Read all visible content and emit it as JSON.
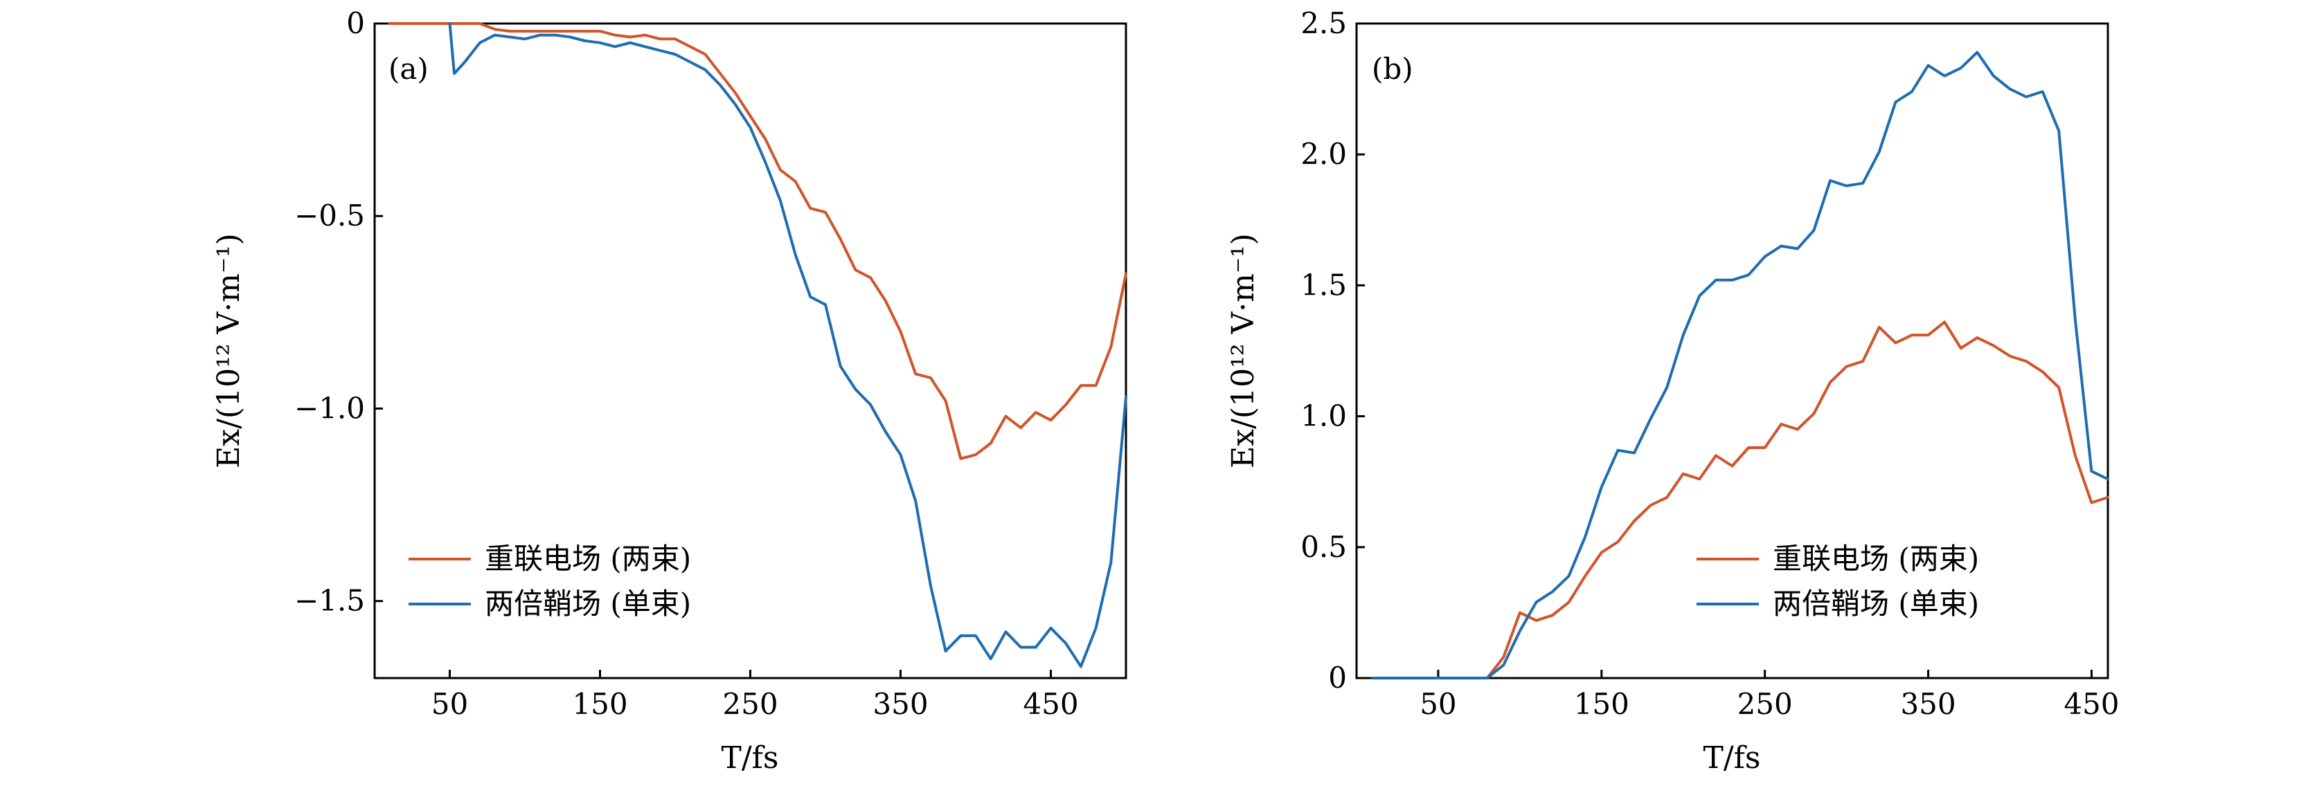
{
  "chart_data": [
    {
      "type": "line",
      "panel_label": "(a)",
      "xlabel": "T/fs",
      "ylabel": "Ex/(10¹² V·m⁻¹)",
      "xlim": [
        0,
        500
      ],
      "ylim": [
        -1.7,
        0
      ],
      "xticks": [
        50,
        150,
        250,
        350,
        450
      ],
      "xtick_labels": [
        "50",
        "150",
        "250",
        "350",
        "450"
      ],
      "yticks": [
        0,
        -0.5,
        -1.0,
        -1.5
      ],
      "ytick_labels": [
        "0",
        "−0.5",
        "−1.0",
        "−1.5"
      ],
      "legend_position": "lower-left",
      "grid": false,
      "series": [
        {
          "name": "重联电场 (两束)",
          "color": "#d1552a",
          "x": [
            10,
            20,
            30,
            40,
            50,
            60,
            70,
            80,
            90,
            100,
            110,
            120,
            130,
            140,
            150,
            160,
            170,
            180,
            190,
            200,
            210,
            220,
            230,
            240,
            250,
            260,
            270,
            280,
            290,
            300,
            310,
            320,
            330,
            340,
            350,
            360,
            370,
            380,
            390,
            400,
            410,
            420,
            430,
            440,
            450,
            460,
            470,
            480,
            490,
            500
          ],
          "y": [
            0,
            0,
            0,
            0,
            0,
            0,
            0,
            -0.015,
            -0.02,
            -0.02,
            -0.02,
            -0.02,
            -0.02,
            -0.02,
            -0.02,
            -0.03,
            -0.035,
            -0.03,
            -0.04,
            -0.04,
            -0.06,
            -0.08,
            -0.13,
            -0.18,
            -0.24,
            -0.3,
            -0.38,
            -0.41,
            -0.48,
            -0.49,
            -0.56,
            -0.64,
            -0.66,
            -0.72,
            -0.8,
            -0.91,
            -0.92,
            -0.98,
            -1.13,
            -1.12,
            -1.09,
            -1.02,
            -1.05,
            -1.01,
            -1.03,
            -0.99,
            -0.94,
            -0.94,
            -0.84,
            -0.65
          ]
        },
        {
          "name": "两倍鞘场 (单束)",
          "color": "#1f6db0",
          "x": [
            50,
            53,
            60,
            70,
            80,
            90,
            100,
            110,
            120,
            130,
            140,
            150,
            160,
            170,
            180,
            190,
            200,
            210,
            220,
            230,
            240,
            250,
            260,
            270,
            280,
            290,
            300,
            310,
            320,
            330,
            340,
            350,
            360,
            370,
            380,
            390,
            400,
            410,
            420,
            430,
            440,
            450,
            460,
            470,
            480,
            490,
            500
          ],
          "y": [
            0,
            -0.13,
            -0.1,
            -0.05,
            -0.03,
            -0.035,
            -0.04,
            -0.03,
            -0.03,
            -0.035,
            -0.045,
            -0.05,
            -0.06,
            -0.05,
            -0.06,
            -0.07,
            -0.08,
            -0.1,
            -0.12,
            -0.16,
            -0.21,
            -0.27,
            -0.36,
            -0.46,
            -0.6,
            -0.71,
            -0.73,
            -0.89,
            -0.95,
            -0.99,
            -1.06,
            -1.12,
            -1.24,
            -1.46,
            -1.63,
            -1.59,
            -1.59,
            -1.65,
            -1.58,
            -1.62,
            -1.62,
            -1.57,
            -1.61,
            -1.67,
            -1.57,
            -1.4,
            -0.97
          ]
        }
      ]
    },
    {
      "type": "line",
      "panel_label": "(b)",
      "xlabel": "T/fs",
      "ylabel": "Ex/(10¹² V·m⁻¹)",
      "xlim": [
        0,
        460
      ],
      "ylim": [
        0,
        2.5
      ],
      "xticks": [
        50,
        150,
        250,
        350,
        450
      ],
      "xtick_labels": [
        "50",
        "150",
        "250",
        "350",
        "450"
      ],
      "yticks": [
        0,
        0.5,
        1.0,
        1.5,
        2.0,
        2.5
      ],
      "ytick_labels": [
        "0",
        "0.5",
        "1.0",
        "1.5",
        "2.0",
        "2.5"
      ],
      "legend_position": "lower-right",
      "grid": false,
      "series": [
        {
          "name": "重联电场 (两束)",
          "color": "#d1552a",
          "x": [
            10,
            20,
            30,
            40,
            50,
            60,
            70,
            80,
            90,
            100,
            110,
            120,
            130,
            140,
            150,
            160,
            170,
            180,
            190,
            200,
            210,
            220,
            230,
            240,
            250,
            260,
            270,
            280,
            290,
            300,
            310,
            320,
            330,
            340,
            350,
            360,
            370,
            380,
            390,
            400,
            410,
            420,
            430,
            440,
            450,
            460
          ],
          "y": [
            0,
            0,
            0,
            0,
            0,
            0,
            0,
            0,
            0.08,
            0.25,
            0.22,
            0.24,
            0.29,
            0.39,
            0.48,
            0.52,
            0.6,
            0.66,
            0.69,
            0.78,
            0.76,
            0.85,
            0.81,
            0.88,
            0.88,
            0.97,
            0.95,
            1.01,
            1.13,
            1.19,
            1.21,
            1.34,
            1.28,
            1.31,
            1.31,
            1.36,
            1.26,
            1.3,
            1.27,
            1.23,
            1.21,
            1.17,
            1.11,
            0.85,
            0.67,
            0.69
          ]
        },
        {
          "name": "两倍鞘场 (单束)",
          "color": "#1f6db0",
          "x": [
            10,
            20,
            30,
            40,
            50,
            60,
            70,
            80,
            90,
            100,
            110,
            120,
            130,
            140,
            150,
            160,
            170,
            180,
            190,
            200,
            210,
            220,
            230,
            240,
            250,
            260,
            270,
            280,
            290,
            300,
            310,
            320,
            330,
            340,
            350,
            360,
            370,
            380,
            390,
            400,
            410,
            420,
            430,
            440,
            450,
            460
          ],
          "y": [
            0,
            0,
            0,
            0,
            0,
            0,
            0,
            0,
            0.05,
            0.18,
            0.29,
            0.33,
            0.39,
            0.54,
            0.73,
            0.87,
            0.86,
            0.99,
            1.11,
            1.31,
            1.46,
            1.52,
            1.52,
            1.54,
            1.61,
            1.65,
            1.64,
            1.71,
            1.9,
            1.88,
            1.89,
            2.01,
            2.2,
            2.24,
            2.34,
            2.3,
            2.33,
            2.39,
            2.3,
            2.25,
            2.22,
            2.24,
            2.09,
            1.37,
            0.79,
            0.76
          ]
        }
      ]
    }
  ]
}
